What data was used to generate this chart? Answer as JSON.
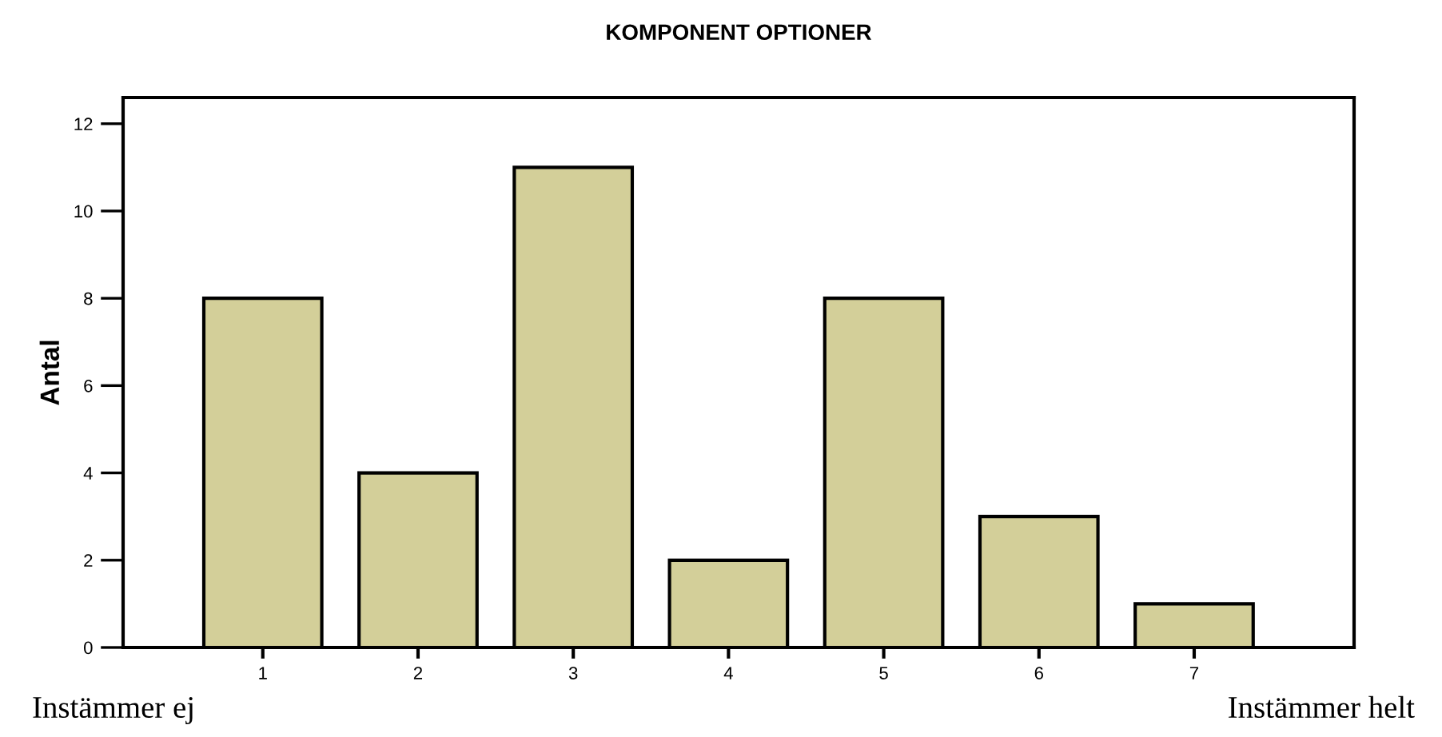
{
  "chart_data": {
    "type": "bar",
    "title": "KOMPONENT OPTIONER",
    "ylabel": "Antal",
    "categories": [
      "1",
      "2",
      "3",
      "4",
      "5",
      "6",
      "7"
    ],
    "values": [
      8,
      4,
      11,
      2,
      8,
      3,
      1
    ],
    "color": "#d3cf99",
    "ylim": [
      0,
      12.6
    ],
    "yticks": [
      0,
      2,
      4,
      6,
      8,
      10,
      12
    ],
    "grid": false,
    "annotations": [
      "Instämmer ej",
      "Instämmer helt"
    ]
  }
}
